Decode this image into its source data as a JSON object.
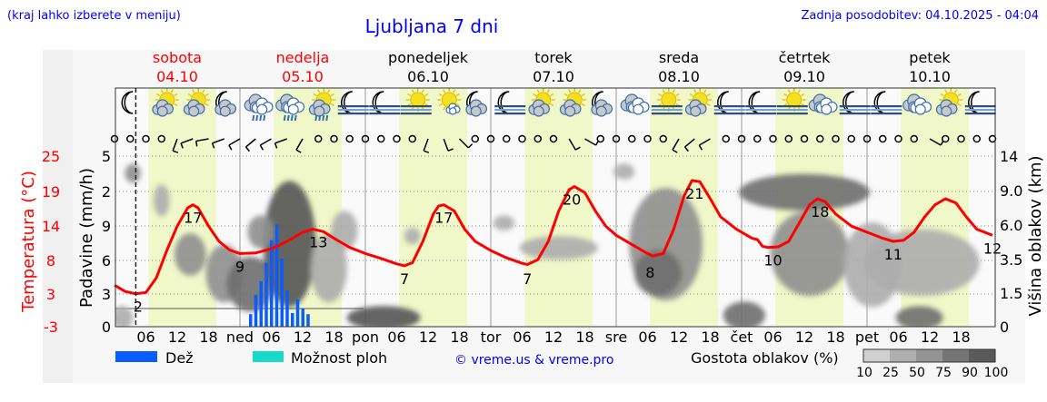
{
  "header": {
    "menu_hint": "(kraj lahko izberete v meniju)",
    "title": "Ljubljana 7 dni",
    "updated": "Zadnja posodobitev: 04.10.2025 - 04:04"
  },
  "colors": {
    "accent_blue": "#0000ff",
    "temperature": "#ff0000",
    "rain": "#0a5cff",
    "showers": "#19d9c8",
    "daylight": "#f0f7c8"
  },
  "days": [
    {
      "name": "sobota",
      "date": "04.10",
      "weekend": true
    },
    {
      "name": "nedelja",
      "date": "05.10",
      "weekend": true
    },
    {
      "name": "ponedeljek",
      "date": "06.10",
      "weekend": false
    },
    {
      "name": "torek",
      "date": "07.10",
      "weekend": false
    },
    {
      "name": "sreda",
      "date": "08.10",
      "weekend": false
    },
    {
      "name": "četrtek",
      "date": "09.10",
      "weekend": false
    },
    {
      "name": "petek",
      "date": "10.10",
      "weekend": false
    }
  ],
  "icons": [
    "moon",
    "sun-cloud",
    "sun-cloud",
    "moon-cloud",
    "rain-cloud",
    "rain-cloud",
    "sun-cloud-rain",
    "moon-fog",
    "moon-fog",
    "sun-fog",
    "sun-small-cloud",
    "moon-cloud",
    "moon-fog",
    "sun-cloud",
    "sun-cloud",
    "moon-cloud",
    "cloud",
    "sun-fog",
    "sun-cloud",
    "moon-fog",
    "moon-fog",
    "sun-fog",
    "cloud",
    "moon-fog",
    "moon-fog",
    "cloud",
    "sun-cloud",
    "moon-fog"
  ],
  "chart_data": {
    "type": "line",
    "title": "Ljubljana 7 dni",
    "x_unit": "hours from 04.10 00:00",
    "x_range": [
      0,
      168
    ],
    "now_hour": 4.07,
    "x_tick_labels": [
      "06",
      "12",
      "18",
      "ned",
      "06",
      "12",
      "18",
      "pon",
      "06",
      "12",
      "18",
      "tor",
      "06",
      "12",
      "18",
      "sre",
      "06",
      "12",
      "18",
      "čet",
      "06",
      "12",
      "18",
      "pet",
      "06",
      "12",
      "18"
    ],
    "daylight_hours": [
      6.5,
      19.5
    ],
    "temperature": {
      "axis_label": "Temperatura (°C)",
      "ticks": [
        "25",
        "19",
        "14",
        "8",
        "3",
        "-3"
      ],
      "ylim": [
        -3,
        25
      ],
      "points": [
        [
          0,
          3.8
        ],
        [
          2,
          2.8
        ],
        [
          4,
          2.4
        ],
        [
          6,
          2.6
        ],
        [
          8,
          5
        ],
        [
          10,
          9.5
        ],
        [
          12,
          13.5
        ],
        [
          14,
          16.5
        ],
        [
          15,
          17
        ],
        [
          16,
          16.5
        ],
        [
          18,
          13.5
        ],
        [
          20,
          11
        ],
        [
          22,
          9.6
        ],
        [
          24,
          9
        ],
        [
          27,
          9.1
        ],
        [
          30,
          9.8
        ],
        [
          33,
          11
        ],
        [
          36,
          12.5
        ],
        [
          38,
          13
        ],
        [
          40,
          12.6
        ],
        [
          42,
          11.5
        ],
        [
          45,
          10
        ],
        [
          48,
          9
        ],
        [
          51,
          8.2
        ],
        [
          54,
          7.3
        ],
        [
          55.5,
          7
        ],
        [
          57,
          7.5
        ],
        [
          59,
          11
        ],
        [
          61,
          15.5
        ],
        [
          62,
          16.8
        ],
        [
          63,
          17
        ],
        [
          65,
          16
        ],
        [
          67,
          13
        ],
        [
          69,
          11
        ],
        [
          72,
          9.5
        ],
        [
          75,
          8.3
        ],
        [
          78,
          7.4
        ],
        [
          79,
          7.2
        ],
        [
          81,
          8
        ],
        [
          83,
          11
        ],
        [
          85,
          16
        ],
        [
          87,
          19.5
        ],
        [
          88,
          20
        ],
        [
          90,
          19
        ],
        [
          92,
          16
        ],
        [
          94,
          13.5
        ],
        [
          96,
          12
        ],
        [
          99,
          10.5
        ],
        [
          102,
          9
        ],
        [
          103,
          8.6
        ],
        [
          105,
          9
        ],
        [
          107,
          13
        ],
        [
          109,
          18.5
        ],
        [
          110.5,
          21
        ],
        [
          112,
          20.8
        ],
        [
          114,
          18
        ],
        [
          116,
          15
        ],
        [
          119,
          13
        ],
        [
          122,
          11.5
        ],
        [
          123,
          11.3
        ],
        [
          124,
          10.2
        ],
        [
          125,
          10
        ],
        [
          127,
          10.1
        ],
        [
          129,
          11
        ],
        [
          131,
          14
        ],
        [
          133,
          17
        ],
        [
          134.5,
          18
        ],
        [
          136,
          17.5
        ],
        [
          138,
          15.5
        ],
        [
          141,
          13.5
        ],
        [
          144,
          12.5
        ],
        [
          147,
          11.5
        ],
        [
          149,
          11
        ],
        [
          151,
          11.2
        ],
        [
          153,
          12.5
        ],
        [
          155,
          15
        ],
        [
          157,
          17
        ],
        [
          159,
          18
        ],
        [
          161,
          17.3
        ],
        [
          163,
          15
        ],
        [
          165,
          13
        ],
        [
          168,
          12
        ]
      ],
      "labels": [
        [
          4.5,
          2.4,
          "2"
        ],
        [
          15,
          17,
          "17"
        ],
        [
          24,
          9,
          "9"
        ],
        [
          39,
          13,
          "13"
        ],
        [
          55.5,
          7,
          "7"
        ],
        [
          63,
          17,
          "17"
        ],
        [
          79,
          7,
          "7"
        ],
        [
          87.5,
          20,
          "20"
        ],
        [
          102.5,
          8,
          "8"
        ],
        [
          111,
          21,
          "21"
        ],
        [
          126,
          10,
          "10"
        ],
        [
          135,
          18,
          "18"
        ],
        [
          149,
          11,
          "11"
        ],
        [
          168,
          12,
          "12"
        ]
      ]
    },
    "precipitation": {
      "axis_label": "Padavine (mm/h)",
      "ticks": [
        "5",
        "2",
        "9",
        "6",
        "3",
        "0"
      ],
      "ylim": [
        0,
        15
      ],
      "rain_hourly": [
        [
          26,
          1.1
        ],
        [
          27,
          2.8
        ],
        [
          28,
          4.0
        ],
        [
          29,
          5.6
        ],
        [
          30,
          7.6
        ],
        [
          31,
          9.0
        ],
        [
          32,
          6.0
        ],
        [
          33,
          3.2
        ],
        [
          34,
          1.2
        ],
        [
          35,
          2.4
        ],
        [
          36,
          1.6
        ],
        [
          37,
          1.1
        ]
      ]
    },
    "cloud_height": {
      "axis_label": "Višina oblakov (km)",
      "ticks": [
        "14",
        "9.0",
        "6.0",
        "3.5",
        "1.5",
        "0"
      ],
      "tick_values": [
        14,
        9,
        6,
        3.5,
        1.5,
        0
      ]
    },
    "cloud_density_blobs": [
      [
        2.5,
        4.5,
        10.5,
        12.5,
        50
      ],
      [
        8,
        10,
        7,
        9.5,
        40
      ],
      [
        12,
        17,
        2.7,
        5.2,
        50
      ],
      [
        18,
        24,
        1.2,
        4.4,
        60
      ],
      [
        22,
        30,
        0.8,
        3.5,
        80
      ],
      [
        29,
        38,
        1,
        10,
        90
      ],
      [
        26,
        30,
        4.5,
        6.6,
        50
      ],
      [
        38,
        44,
        1.2,
        5.2,
        40
      ],
      [
        42,
        46,
        4.4,
        7,
        30
      ],
      [
        0,
        3,
        0,
        0.8,
        40
      ],
      [
        45,
        58,
        0,
        0.8,
        90
      ],
      [
        56,
        58,
        4.8,
        5.6,
        25
      ],
      [
        73,
        76,
        5.8,
        6.6,
        25
      ],
      [
        78,
        92,
        3.7,
        5,
        25
      ],
      [
        96,
        99,
        11,
        12.5,
        30
      ],
      [
        99,
        112,
        1.3,
        9,
        50
      ],
      [
        100,
        108,
        1.5,
        4,
        75
      ],
      [
        117,
        124,
        0,
        1,
        85
      ],
      [
        120,
        144,
        7.5,
        11,
        80
      ],
      [
        126,
        140,
        1.5,
        7,
        55
      ],
      [
        140,
        150,
        1,
        6,
        40
      ],
      [
        144,
        165,
        1.5,
        5.5,
        40
      ],
      [
        150,
        158,
        0,
        0.8,
        85
      ]
    ],
    "wind_3h": [
      "c",
      "c",
      "c",
      "c",
      200,
      250,
      260,
      250,
      240,
      230,
      240,
      250,
      210,
      "c",
      "c",
      "c",
      "c",
      "c",
      "c",
      "c",
      200,
      160,
      135,
      "c",
      "c",
      "c",
      "c",
      "c",
      "c",
      150,
      120,
      "c",
      "c",
      "c",
      "c",
      "c",
      210,
      230,
      240,
      "c",
      "c",
      "c",
      "c",
      "c",
      "c",
      "c",
      "c",
      "c",
      "c",
      "c",
      "c",
      "c",
      120,
      "c",
      "c",
      "c",
      "c"
    ],
    "legend": {
      "rain": "Dež",
      "showers": "Možnost ploh",
      "copyright": "© vreme.us & vreme.pro",
      "density_title": "Gostota oblakov (%)",
      "density_levels": [
        "10",
        "25",
        "50",
        "75",
        "90",
        "100"
      ]
    }
  }
}
